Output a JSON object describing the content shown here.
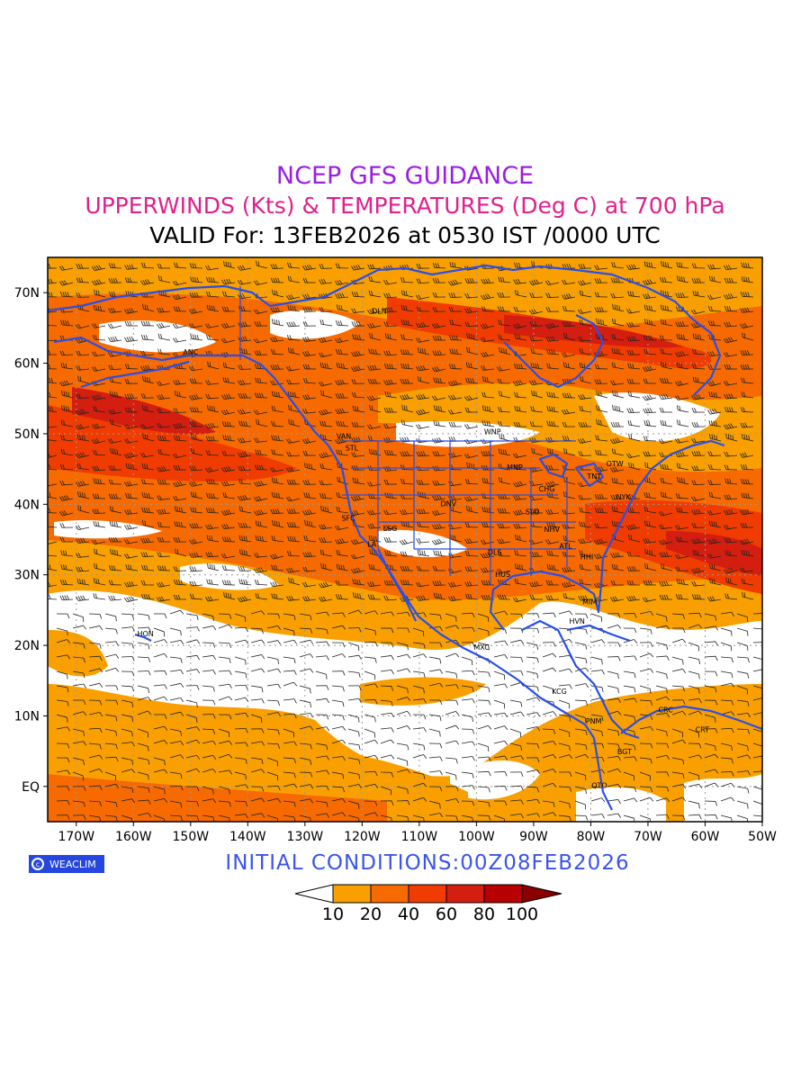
{
  "header": {
    "line1": "NCEP GFS GUIDANCE",
    "line2": "UPPERWINDS (Kts) & TEMPERATURES (Deg C) at 700 hPa",
    "line3": "VALID For: 13FEB2026 at 0530 IST /0000 UTC"
  },
  "map": {
    "lon_range": [
      -175,
      -50
    ],
    "lat_range": [
      -5,
      75
    ],
    "lat_labels": [
      {
        "lat": 70,
        "text": "70N"
      },
      {
        "lat": 60,
        "text": "60N"
      },
      {
        "lat": 50,
        "text": "50N"
      },
      {
        "lat": 40,
        "text": "40N"
      },
      {
        "lat": 30,
        "text": "30N"
      },
      {
        "lat": 20,
        "text": "20N"
      },
      {
        "lat": 10,
        "text": "10N"
      },
      {
        "lat": 0,
        "text": "EQ"
      }
    ],
    "lon_labels": [
      {
        "lon": -170,
        "text": "170W"
      },
      {
        "lon": -160,
        "text": "160W"
      },
      {
        "lon": -150,
        "text": "150W"
      },
      {
        "lon": -140,
        "text": "140W"
      },
      {
        "lon": -130,
        "text": "130W"
      },
      {
        "lon": -120,
        "text": "120W"
      },
      {
        "lon": -110,
        "text": "110W"
      },
      {
        "lon": -100,
        "text": "100W"
      },
      {
        "lon": -90,
        "text": "90W"
      },
      {
        "lon": -80,
        "text": "80W"
      },
      {
        "lon": -70,
        "text": "70W"
      },
      {
        "lon": -60,
        "text": "60W"
      },
      {
        "lon": -50,
        "text": "50W"
      }
    ],
    "stations": [
      {
        "code": "DLN",
        "lat": 67,
        "lon": -117
      },
      {
        "code": "ANC",
        "lat": 61.2,
        "lon": -150
      },
      {
        "code": "VAN",
        "lat": 49.3,
        "lon": -123.2
      },
      {
        "code": "STL",
        "lat": 47.6,
        "lon": -121.8
      },
      {
        "code": "WNP",
        "lat": 49.9,
        "lon": -97.2
      },
      {
        "code": "MNP",
        "lat": 44.9,
        "lon": -93.3
      },
      {
        "code": "OTW",
        "lat": 45.4,
        "lon": -75.8
      },
      {
        "code": "TNT",
        "lat": 43.6,
        "lon": -79.4
      },
      {
        "code": "CHG",
        "lat": 41.8,
        "lon": -87.7
      },
      {
        "code": "NYK",
        "lat": 40.7,
        "lon": -74.3
      },
      {
        "code": "DNV",
        "lat": 39.7,
        "lon": -104.9
      },
      {
        "code": "SLO",
        "lat": 38.6,
        "lon": -90.2
      },
      {
        "code": "SFC",
        "lat": 37.7,
        "lon": -122.4
      },
      {
        "code": "LSG",
        "lat": 36.2,
        "lon": -115.1
      },
      {
        "code": "NHV",
        "lat": 36.1,
        "lon": -86.8
      },
      {
        "code": "LA",
        "lat": 34.0,
        "lon": -118.3
      },
      {
        "code": "ATL",
        "lat": 33.7,
        "lon": -84.4
      },
      {
        "code": "DLS",
        "lat": 32.8,
        "lon": -96.8
      },
      {
        "code": "HHI",
        "lat": 32.2,
        "lon": -80.7
      },
      {
        "code": "HUS",
        "lat": 29.7,
        "lon": -95.4
      },
      {
        "code": "MIM",
        "lat": 25.8,
        "lon": -80.2
      },
      {
        "code": "HVN",
        "lat": 23.1,
        "lon": -82.4
      },
      {
        "code": "HON",
        "lat": 21.3,
        "lon": -157.9
      },
      {
        "code": "MXC",
        "lat": 19.4,
        "lon": -99.1
      },
      {
        "code": "KCG",
        "lat": 13.1,
        "lon": -85.5
      },
      {
        "code": "CRC",
        "lat": 10.5,
        "lon": -66.9
      },
      {
        "code": "PNM",
        "lat": 8.9,
        "lon": -79.5
      },
      {
        "code": "CRT",
        "lat": 7.7,
        "lon": -60.5
      },
      {
        "code": "BGT",
        "lat": 4.6,
        "lon": -74.1
      },
      {
        "code": "QTO",
        "lat": -0.2,
        "lon": -78.5
      }
    ]
  },
  "legend": {
    "levels": [
      "10",
      "20",
      "40",
      "60",
      "80",
      "100"
    ],
    "colors": [
      "#ffffff",
      "#f9a000",
      "#f76a00",
      "#f03c00",
      "#d41e10",
      "#b80000",
      "#8a0000"
    ]
  },
  "footer": {
    "logo_text": "WEACLIM",
    "initial_conditions": "INITIAL  CONDITIONS:00Z08FEB2026"
  },
  "colors": {
    "coast": "#2a4ee8",
    "title1": "#9a1fe0",
    "title2": "#e0208c"
  }
}
